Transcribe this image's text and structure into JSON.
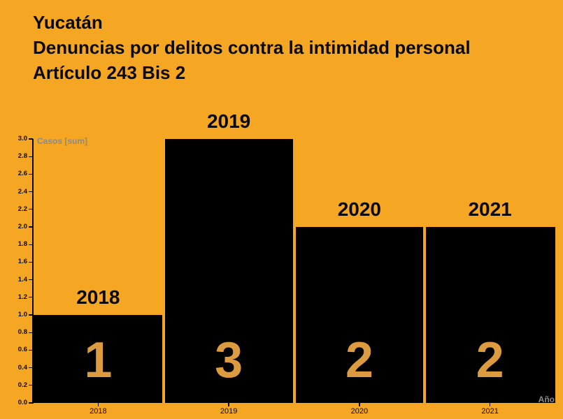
{
  "title": {
    "line1": "Yucatán",
    "line2": "Denuncias por delitos contra la intimidad personal",
    "line3": "Artículo 243 Bis 2"
  },
  "chart_data": {
    "type": "bar",
    "title": "Yucatán — Denuncias por delitos contra la intimidad personal — Artículo 243 Bis 2",
    "categories": [
      "2018",
      "2019",
      "2020",
      "2021"
    ],
    "values": [
      1,
      3,
      2,
      2
    ],
    "bar_value_labels": [
      "1",
      "3",
      "2",
      "2"
    ],
    "xlabel": "Año",
    "ylabel": "Casos [sum]",
    "ylim": [
      0,
      3
    ],
    "ytick_step": 0.2,
    "ytick_labels": [
      "0.0",
      "0.2",
      "0.4",
      "0.6",
      "0.8",
      "1.0",
      "1.2",
      "1.4",
      "1.6",
      "1.8",
      "2.0",
      "2.2",
      "2.4",
      "2.6",
      "2.8",
      "3.0"
    ],
    "grid": false,
    "legend": "none",
    "colors": {
      "background": "#f5a623",
      "bar": "#000000",
      "bar_value_label": "#dc9b3f",
      "axis_title": "#8a8a8a",
      "tick_label": "#0a0a0a"
    }
  }
}
